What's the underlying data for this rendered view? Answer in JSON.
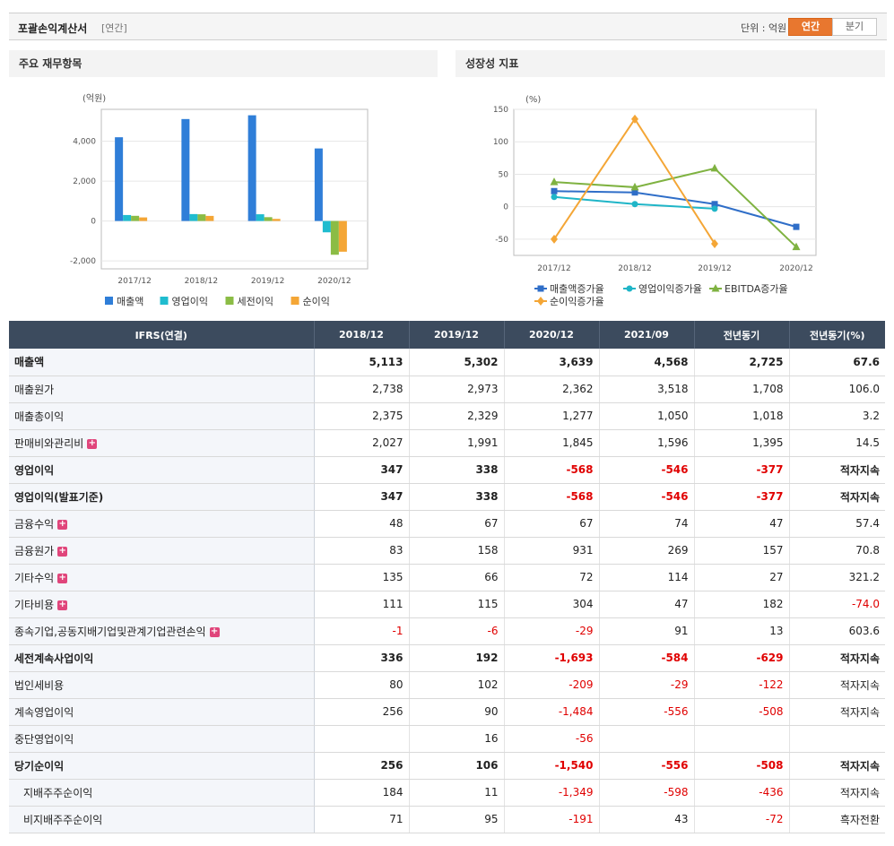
{
  "header": {
    "title": "포괄손익계산서",
    "period": "[연간]",
    "unit": "단위 : 억원",
    "btn_annual": "연간",
    "btn_quarter": "분기"
  },
  "panel1": {
    "title": "주요 재무항목"
  },
  "panel2": {
    "title": "성장성 지표"
  },
  "chart_data": [
    {
      "type": "bar",
      "ylabel": "(억원)",
      "categories": [
        "2017/12",
        "2018/12",
        "2019/12",
        "2020/12"
      ],
      "yticks": [
        "4,000",
        "2,000",
        "0",
        "-2,000"
      ],
      "ylim": [
        -2400,
        5600
      ],
      "series": [
        {
          "name": "매출액",
          "color": "#2f7ed8",
          "values": [
            4200,
            5113,
            5302,
            3639
          ]
        },
        {
          "name": "영업이익",
          "color": "#1fbccf",
          "values": [
            300,
            347,
            338,
            -568
          ]
        },
        {
          "name": "세전이익",
          "color": "#8bbc45",
          "values": [
            260,
            336,
            192,
            -1693
          ]
        },
        {
          "name": "순이익",
          "color": "#f4a636",
          "values": [
            180,
            256,
            106,
            -1540
          ]
        }
      ]
    },
    {
      "type": "line",
      "ylabel": "(%)",
      "categories": [
        "2017/12",
        "2018/12",
        "2019/12",
        "2020/12"
      ],
      "yticks": [
        "150",
        "100",
        "50",
        "0",
        "-50"
      ],
      "ylim": [
        -75,
        150
      ],
      "series": [
        {
          "name": "매출액증가율",
          "color": "#2f6ec8",
          "marker": "square",
          "values": [
            24,
            22,
            4,
            -31
          ]
        },
        {
          "name": "영업이익증가율",
          "color": "#1fb5c7",
          "marker": "circle",
          "values": [
            15,
            4,
            -3,
            null
          ]
        },
        {
          "name": "EBITDA증가율",
          "color": "#7fb241",
          "marker": "triangle",
          "values": [
            38,
            30,
            59,
            -62
          ]
        },
        {
          "name": "순이익증가율",
          "color": "#f4a636",
          "marker": "diamond",
          "values": [
            -50,
            135,
            -57,
            null
          ]
        }
      ]
    }
  ],
  "table": {
    "headers": [
      "IFRS(연결)",
      "2018/12",
      "2019/12",
      "2020/12",
      "2021/09",
      "전년동기",
      "전년동기(%)"
    ],
    "rows": [
      {
        "label": "매출액",
        "plus": false,
        "values": [
          "5,113",
          "5,302",
          "3,639",
          "4,568",
          "2,725",
          "67.6"
        ]
      },
      {
        "label": "매출원가",
        "plus": false,
        "values": [
          "2,738",
          "2,973",
          "2,362",
          "3,518",
          "1,708",
          "106.0"
        ]
      },
      {
        "label": "매출총이익",
        "plus": false,
        "values": [
          "2,375",
          "2,329",
          "1,277",
          "1,050",
          "1,018",
          "3.2"
        ]
      },
      {
        "label": "판매비와관리비",
        "plus": true,
        "values": [
          "2,027",
          "1,991",
          "1,845",
          "1,596",
          "1,395",
          "14.5"
        ]
      },
      {
        "label": "영업이익",
        "plus": false,
        "values": [
          "347",
          "338",
          "-568",
          "-546",
          "-377",
          "적자지속"
        ]
      },
      {
        "label": "영업이익(발표기준)",
        "plus": false,
        "values": [
          "347",
          "338",
          "-568",
          "-546",
          "-377",
          "적자지속"
        ]
      },
      {
        "label": "금융수익",
        "plus": true,
        "values": [
          "48",
          "67",
          "67",
          "74",
          "47",
          "57.4"
        ]
      },
      {
        "label": "금융원가",
        "plus": true,
        "values": [
          "83",
          "158",
          "931",
          "269",
          "157",
          "70.8"
        ]
      },
      {
        "label": "기타수익",
        "plus": true,
        "values": [
          "135",
          "66",
          "72",
          "114",
          "27",
          "321.2"
        ]
      },
      {
        "label": "기타비용",
        "plus": true,
        "values": [
          "111",
          "115",
          "304",
          "47",
          "182",
          "-74.0"
        ]
      },
      {
        "label": "종속기업,공동지배기업및관계기업관련손익",
        "plus": true,
        "values": [
          "-1",
          "-6",
          "-29",
          "91",
          "13",
          "603.6"
        ]
      },
      {
        "label": "세전계속사업이익",
        "plus": false,
        "values": [
          "336",
          "192",
          "-1,693",
          "-584",
          "-629",
          "적자지속"
        ]
      },
      {
        "label": "법인세비용",
        "plus": false,
        "values": [
          "80",
          "102",
          "-209",
          "-29",
          "-122",
          "적자지속"
        ]
      },
      {
        "label": "계속영업이익",
        "plus": false,
        "values": [
          "256",
          "90",
          "-1,484",
          "-556",
          "-508",
          "적자지속"
        ]
      },
      {
        "label": "중단영업이익",
        "plus": false,
        "values": [
          "",
          "16",
          "-56",
          "",
          "",
          ""
        ]
      },
      {
        "label": "당기순이익",
        "plus": false,
        "values": [
          "256",
          "106",
          "-1,540",
          "-556",
          "-508",
          "적자지속"
        ]
      },
      {
        "label": "지배주주순이익",
        "plus": false,
        "values": [
          "184",
          "11",
          "-1,349",
          "-598",
          "-436",
          "적자지속"
        ]
      },
      {
        "label": "비지배주주순이익",
        "plus": false,
        "values": [
          "71",
          "95",
          "-191",
          "43",
          "-72",
          "흑자전환"
        ]
      }
    ]
  }
}
